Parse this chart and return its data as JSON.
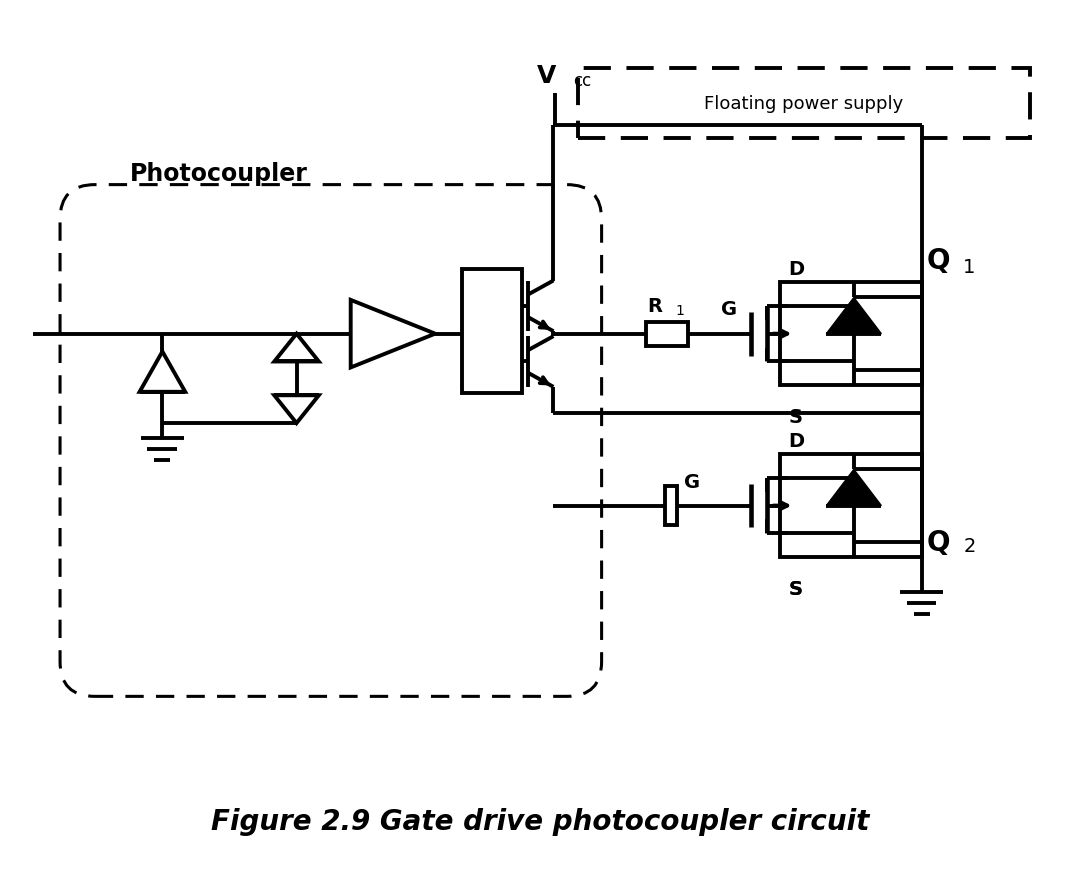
{
  "title": "Figure 2.9 Gate drive photocoupler circuit",
  "bg_color": "#ffffff",
  "lc": "#000000",
  "lw": 2.8,
  "fig_width": 10.8,
  "fig_height": 8.79,
  "dpi": 100,
  "xlim": [
    0,
    10.8
  ],
  "ylim": [
    0,
    8.79
  ],
  "photocoupler_label": "Photocoupler",
  "fps_label": "Floating power supply",
  "vcc_label": "V",
  "vcc_sub": "cc",
  "r1_label": "R",
  "r1_sub": "1",
  "g_label": "G",
  "d_label": "D",
  "s_label": "S",
  "q1_label": "Q",
  "q1_sub": "1",
  "q2_label": "Q",
  "q2_sub": "2",
  "title_fontsize": 20,
  "label_fontsize": 15,
  "sublabel_fontsize": 11
}
